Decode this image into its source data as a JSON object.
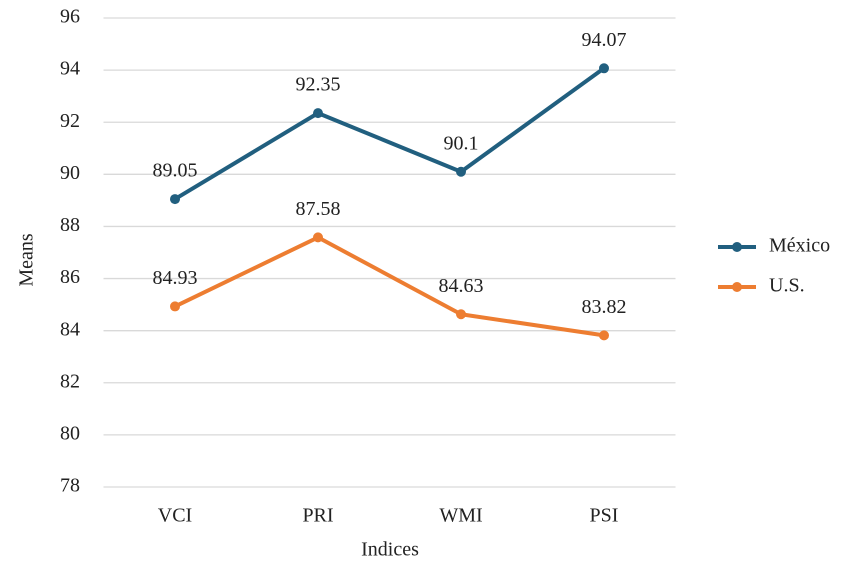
{
  "chart_data": {
    "type": "line",
    "x_label": "Indices",
    "y_label": "Means",
    "categories": [
      "VCI",
      "PRI",
      "WMI",
      "PSI"
    ],
    "series": [
      {
        "name": "México",
        "color": "#215f7f",
        "values": [
          89.05,
          92.35,
          90.1,
          94.07
        ]
      },
      {
        "name": "U.S.",
        "color": "#ed7d31",
        "values": [
          84.93,
          87.58,
          84.63,
          83.82
        ]
      }
    ],
    "ylim": [
      78,
      96
    ],
    "yticks": [
      78,
      80,
      82,
      84,
      86,
      88,
      90,
      92,
      94,
      96
    ],
    "grid": true,
    "legend": "right",
    "data_labels": true
  }
}
